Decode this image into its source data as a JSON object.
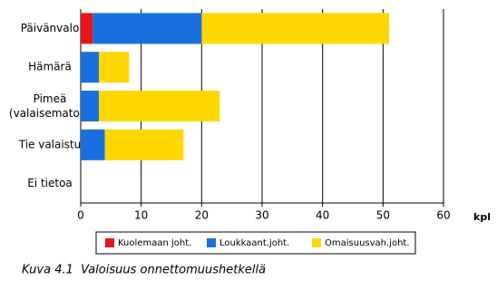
{
  "chart_data": {
    "type": "stacked-bar-horizontal",
    "caption": "Kuva 4.1  Valoisuus onnettomuushetkellä",
    "x_label": "kpl",
    "categories": [
      "Päivänvalo",
      "Hämärä",
      "Pimeä (valaisematon)",
      "Tie valaistu",
      "Ei tietoa"
    ],
    "series": [
      {
        "name": "Kuolemaan joht.",
        "color": "#e8141c",
        "values": [
          2,
          0,
          0,
          0,
          0
        ]
      },
      {
        "name": "Loukkaant.joht.",
        "color": "#1a6fdf",
        "values": [
          18,
          3,
          3,
          4,
          0
        ]
      },
      {
        "name": "Omaisuusvah.joht.",
        "color": "#ffd700",
        "values": [
          31,
          5,
          20,
          13,
          0
        ]
      }
    ],
    "xlim": [
      0,
      60
    ],
    "xticks": [
      0,
      10,
      20,
      30,
      40,
      50,
      60
    ],
    "grid": true
  }
}
